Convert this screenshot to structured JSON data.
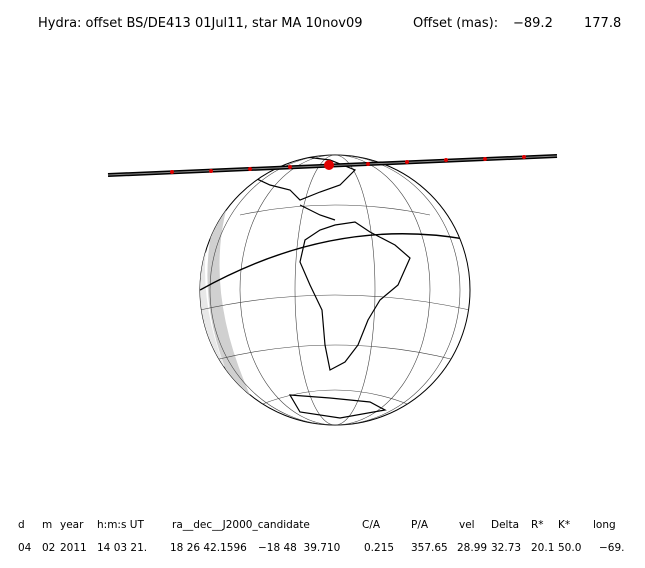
{
  "header": {
    "title": "Hydra: offset BS/DE413 01Jul11, star MA 10nov09",
    "offset_label": "Offset (mas):",
    "offset_values": [
      "−89.2",
      "177.8"
    ]
  },
  "table": {
    "columns": [
      "d",
      "m",
      "year",
      "h:m:s UT",
      "ra__dec__J2000_candidate",
      "C/A",
      "P/A",
      "vel",
      "Delta",
      "R*",
      "K*",
      "long"
    ],
    "rows": [
      [
        "04",
        "02",
        "2011",
        "14 03 21.",
        "18 26 42.1596",
        "−18 48  39.710",
        "0.215",
        "357.65",
        "28.99",
        "32.73",
        "20.1",
        "50.0",
        "−69."
      ]
    ]
  }
}
